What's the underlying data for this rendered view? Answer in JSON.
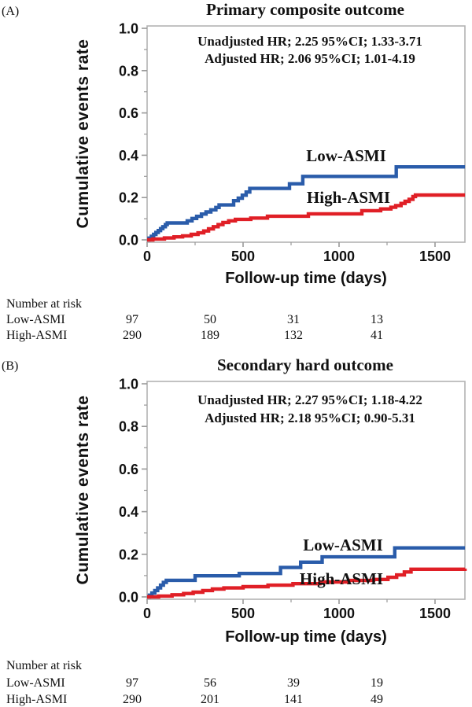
{
  "figure": {
    "description": "Two-panel Kaplan-Meier style cumulative events rate curves comparing Low-ASMI vs High-ASMI groups",
    "accent_blue": "#2a5caa",
    "accent_red": "#e01f26"
  },
  "chart_data": [
    {
      "panel_label": "(A)",
      "type": "line",
      "subtype": "step-cumulative-incidence",
      "title": "Primary composite outcome",
      "xlabel": "Follow-up time (days)",
      "ylabel": "Cumulative events rate",
      "xlim": [
        0,
        1700
      ],
      "ylim": [
        0,
        1.0
      ],
      "xticks": [
        0,
        500,
        1000,
        1500
      ],
      "xticks_minor": [
        250,
        750,
        1250
      ],
      "yticks": [
        0.0,
        0.2,
        0.4,
        0.6,
        0.8,
        1.0
      ],
      "yticks_minor": [
        0.1,
        0.3,
        0.5,
        0.7,
        0.9
      ],
      "grid": false,
      "legend_position": "inline-labels",
      "annotations": [
        {
          "text": "Unadjusted HR; 2.25 95%CI; 1.33-3.71",
          "color": "#111111"
        },
        {
          "text": "Adjusted HR; 2.06 95%CI; 1.01-4.19",
          "color": "#e01f26"
        }
      ],
      "series": [
        {
          "name": "Low-ASMI",
          "color": "#2a5caa",
          "steps": [
            [
              0,
              0
            ],
            [
              10,
              0.008
            ],
            [
              22,
              0.017
            ],
            [
              34,
              0.026
            ],
            [
              46,
              0.035
            ],
            [
              58,
              0.044
            ],
            [
              70,
              0.053
            ],
            [
              82,
              0.062
            ],
            [
              95,
              0.072
            ],
            [
              105,
              0.08
            ],
            [
              209,
              0.09
            ],
            [
              234,
              0.101
            ],
            [
              258,
              0.111
            ],
            [
              283,
              0.122
            ],
            [
              307,
              0.132
            ],
            [
              332,
              0.142
            ],
            [
              358,
              0.153
            ],
            [
              375,
              0.165
            ],
            [
              451,
              0.185
            ],
            [
              475,
              0.197
            ],
            [
              496,
              0.211
            ],
            [
              516,
              0.226
            ],
            [
              535,
              0.243
            ],
            [
              742,
              0.265
            ],
            [
              811,
              0.3
            ],
            [
              1298,
              0.345
            ],
            [
              1656,
              0.345
            ]
          ]
        },
        {
          "name": "High-ASMI",
          "color": "#e01f26",
          "steps": [
            [
              0,
              0
            ],
            [
              30,
              0.004
            ],
            [
              90,
              0.009
            ],
            [
              140,
              0.014
            ],
            [
              185,
              0.019
            ],
            [
              230,
              0.026
            ],
            [
              265,
              0.033
            ],
            [
              295,
              0.042
            ],
            [
              320,
              0.052
            ],
            [
              345,
              0.062
            ],
            [
              370,
              0.072
            ],
            [
              395,
              0.082
            ],
            [
              425,
              0.09
            ],
            [
              460,
              0.097
            ],
            [
              540,
              0.103
            ],
            [
              627,
              0.112
            ],
            [
              840,
              0.123
            ],
            [
              1119,
              0.138
            ],
            [
              1217,
              0.146
            ],
            [
              1270,
              0.154
            ],
            [
              1295,
              0.162
            ],
            [
              1323,
              0.172
            ],
            [
              1344,
              0.182
            ],
            [
              1365,
              0.192
            ],
            [
              1385,
              0.205
            ],
            [
              1398,
              0.212
            ],
            [
              1656,
              0.212
            ]
          ]
        }
      ],
      "number_at_risk": {
        "header": "Number at risk",
        "times": [
          0,
          500,
          1000,
          1500
        ],
        "rows": [
          {
            "name": "Low-ASMI",
            "counts": [
              "97",
              "50",
              "31",
              "13"
            ]
          },
          {
            "name": "High-ASMI",
            "counts": [
              "290",
              "189",
              "132",
              "41"
            ]
          }
        ]
      }
    },
    {
      "panel_label": "(B)",
      "type": "line",
      "subtype": "step-cumulative-incidence",
      "title": "Secondary hard outcome",
      "xlabel": "Follow-up time (days)",
      "ylabel": "Cumulative events rate",
      "xlim": [
        0,
        1700
      ],
      "ylim": [
        0,
        1.0
      ],
      "xticks": [
        0,
        500,
        1000,
        1500
      ],
      "xticks_minor": [
        250,
        750,
        1250
      ],
      "yticks": [
        0.0,
        0.2,
        0.4,
        0.6,
        0.8,
        1.0
      ],
      "yticks_minor": [
        0.1,
        0.3,
        0.5,
        0.7,
        0.9
      ],
      "grid": false,
      "legend_position": "inline-labels",
      "annotations": [
        {
          "text": "Unadjusted HR; 2.27 95%CI; 1.18-4.22",
          "color": "#111111"
        },
        {
          "text": "Adjusted HR; 2.18 95%CI; 0.90-5.31",
          "color": "#e01f26"
        }
      ],
      "series": [
        {
          "name": "Low-ASMI",
          "color": "#2a5caa",
          "steps": [
            [
              0,
              0
            ],
            [
              12,
              0.008
            ],
            [
              25,
              0.018
            ],
            [
              40,
              0.03
            ],
            [
              55,
              0.042
            ],
            [
              70,
              0.055
            ],
            [
              85,
              0.068
            ],
            [
              100,
              0.078
            ],
            [
              250,
              0.099
            ],
            [
              480,
              0.11
            ],
            [
              695,
              0.138
            ],
            [
              800,
              0.163
            ],
            [
              912,
              0.188
            ],
            [
              1290,
              0.23
            ],
            [
              1656,
              0.23
            ]
          ]
        },
        {
          "name": "High-ASMI",
          "color": "#e01f26",
          "steps": [
            [
              0,
              0
            ],
            [
              60,
              0.004
            ],
            [
              130,
              0.01
            ],
            [
              190,
              0.016
            ],
            [
              240,
              0.022
            ],
            [
              290,
              0.03
            ],
            [
              340,
              0.037
            ],
            [
              400,
              0.042
            ],
            [
              500,
              0.048
            ],
            [
              630,
              0.055
            ],
            [
              760,
              0.062
            ],
            [
              900,
              0.07
            ],
            [
              1050,
              0.077
            ],
            [
              1180,
              0.082
            ],
            [
              1255,
              0.092
            ],
            [
              1300,
              0.103
            ],
            [
              1340,
              0.117
            ],
            [
              1375,
              0.13
            ],
            [
              1656,
              0.133
            ]
          ]
        }
      ],
      "number_at_risk": {
        "header": "Number at risk",
        "times": [
          0,
          500,
          1000,
          1500
        ],
        "rows": [
          {
            "name": "Low-ASMI",
            "counts": [
              "97",
              "56",
              "39",
              "19"
            ]
          },
          {
            "name": "High-ASMI",
            "counts": [
              "290",
              "201",
              "141",
              "49"
            ]
          }
        ]
      }
    }
  ]
}
